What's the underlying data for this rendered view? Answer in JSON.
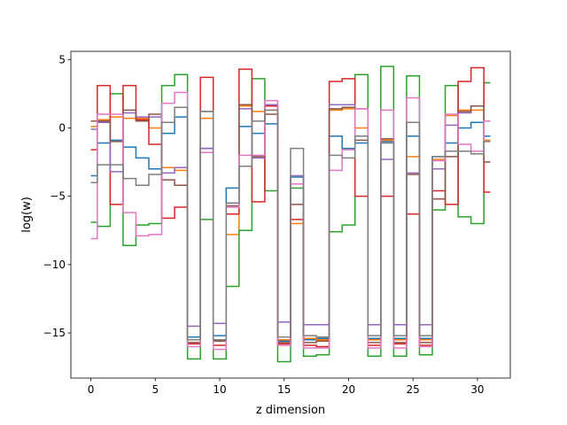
{
  "chart_data": {
    "type": "line",
    "drawstyle": "steps-mid",
    "title": "",
    "xlabel": "z dimension",
    "ylabel": "log(w)",
    "xlim": [
      -1.55,
      32.55
    ],
    "ylim": [
      -18.3,
      5.6
    ],
    "xticks": [
      0,
      5,
      10,
      15,
      20,
      25,
      30
    ],
    "yticks": [
      5,
      0,
      -5,
      -10,
      -15
    ],
    "ytick_labels": [
      "5",
      "0",
      "−5",
      "−10",
      "−15"
    ],
    "grid": false,
    "legend": null,
    "x": [
      0,
      1,
      2,
      3,
      4,
      5,
      6,
      7,
      8,
      9,
      10,
      11,
      12,
      13,
      14,
      15,
      16,
      17,
      18,
      19,
      20,
      21,
      22,
      23,
      24,
      25,
      26,
      27,
      28,
      29,
      30,
      31
    ],
    "series": [
      {
        "color": "#1f77b4",
        "values": [
          -3.5,
          -1.1,
          -0.9,
          -1.4,
          -2.2,
          -3.0,
          -0.4,
          0.8,
          -15.3,
          -1.5,
          -15.2,
          -4.4,
          0.1,
          -0.4,
          0.3,
          -15.6,
          -3.6,
          -15.5,
          -15.4,
          -0.6,
          -1.5,
          -1.1,
          -15.4,
          -1.0,
          -15.4,
          -0.6,
          -15.4,
          -2.1,
          -1.1,
          0.0,
          0.4,
          -0.6
        ]
      },
      {
        "color": "#ff7f0e",
        "values": [
          0.1,
          0.6,
          0.8,
          0.7,
          0.7,
          0.0,
          -2.9,
          -3.1,
          -15.5,
          0.7,
          -15.6,
          -7.8,
          1.6,
          1.2,
          1.3,
          -15.5,
          -7.0,
          -15.4,
          -15.5,
          1.3,
          1.4,
          0.0,
          -15.5,
          -0.9,
          -15.5,
          -2.1,
          -15.5,
          -2.3,
          0.9,
          1.3,
          1.3,
          -0.9
        ]
      },
      {
        "color": "#2ca02c",
        "values": [
          -6.9,
          -7.2,
          2.5,
          -8.6,
          -7.1,
          -7.0,
          3.1,
          3.9,
          -16.9,
          -6.7,
          -16.9,
          -11.6,
          -7.5,
          3.6,
          -4.6,
          -17.1,
          -4.4,
          -16.7,
          -16.6,
          -7.6,
          -7.1,
          3.9,
          -16.7,
          4.5,
          -16.7,
          3.8,
          -16.6,
          -6.0,
          3.1,
          -6.5,
          -7.0,
          3.3
        ]
      },
      {
        "color": "#d62728",
        "values": [
          -1.6,
          3.1,
          -5.6,
          3.1,
          0.6,
          -1.2,
          -6.6,
          -5.8,
          -15.8,
          3.7,
          -15.9,
          -6.3,
          4.3,
          -5.4,
          1.6,
          -15.8,
          -6.7,
          -15.9,
          -16.0,
          3.4,
          3.6,
          -5.0,
          -15.9,
          -5.0,
          -15.8,
          -6.3,
          -15.9,
          -4.6,
          -5.6,
          3.4,
          4.4,
          -4.7
        ]
      },
      {
        "color": "#9467bd",
        "values": [
          -0.1,
          0.4,
          -3.2,
          1.1,
          0.8,
          0.8,
          -3.3,
          -2.9,
          -14.5,
          -1.5,
          -14.3,
          -5.5,
          1.4,
          -2.2,
          1.7,
          -14.2,
          -3.5,
          -14.4,
          -14.4,
          1.7,
          1.7,
          1.4,
          -14.4,
          -2.3,
          -14.4,
          -3.3,
          -14.4,
          -3.0,
          0.2,
          1.1,
          1.6,
          0.5
        ]
      },
      {
        "color": "#8c564b",
        "values": [
          0.5,
          0.5,
          -1.0,
          1.3,
          0.5,
          1.0,
          -3.8,
          -4.2,
          -15.7,
          1.2,
          -15.6,
          -5.7,
          1.7,
          -2.1,
          1.0,
          -15.7,
          -5.6,
          -15.7,
          -15.6,
          1.4,
          1.5,
          -0.9,
          -15.7,
          -0.8,
          -15.7,
          -3.4,
          -15.7,
          -5.2,
          -2.1,
          1.2,
          1.6,
          -2.5
        ]
      },
      {
        "color": "#e377c2",
        "values": [
          -8.1,
          1.0,
          1.0,
          -6.2,
          -7.9,
          -7.8,
          1.8,
          2.6,
          -16.0,
          -1.8,
          -16.2,
          -5.8,
          -2.0,
          -2.0,
          2.0,
          -15.9,
          -4.1,
          -16.1,
          -16.1,
          -3.1,
          -1.6,
          1.4,
          -16.1,
          1.3,
          -16.1,
          2.2,
          -16.0,
          -2.4,
          1.0,
          -1.2,
          -1.7,
          0.5
        ]
      },
      {
        "color": "#7f7f7f",
        "values": [
          -4.0,
          -2.7,
          -2.7,
          -3.7,
          -4.2,
          -3.4,
          0.4,
          1.5,
          -15.5,
          1.2,
          -15.5,
          -5.5,
          -2.8,
          0.5,
          1.3,
          -15.3,
          -1.5,
          -15.2,
          -15.3,
          -2.0,
          -2.2,
          -0.6,
          -15.2,
          -1.1,
          -15.2,
          0.4,
          -15.2,
          -2.1,
          -1.7,
          -1.7,
          -1.9,
          -1.0
        ]
      }
    ]
  }
}
